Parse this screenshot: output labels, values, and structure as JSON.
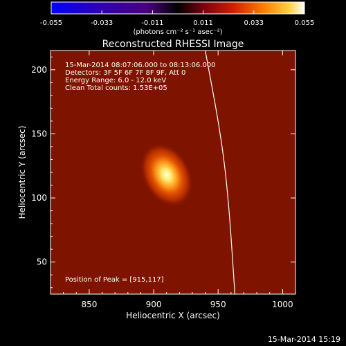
{
  "chart_data": {
    "type": "heatmap",
    "title": "Reconstructed RHESSI Image",
    "xlabel": "Heliocentric X (arcsec)",
    "ylabel": "Heliocentric Y (arcsec)",
    "xlim": [
      820,
      1010
    ],
    "ylim": [
      25,
      215
    ],
    "xticks": [
      850,
      900,
      950,
      1000
    ],
    "yticks": [
      50,
      100,
      150,
      200
    ],
    "colorbar": {
      "min": -0.055,
      "max": 0.055,
      "ticks": [
        "-0.055",
        "-0.033",
        "-0.011",
        "0.011",
        "0.033",
        "0.055"
      ],
      "units_line": "(photons cm⁻² s⁻¹ asec⁻²)"
    },
    "annotations": [
      "15-Mar-2014 08:07:06.000 to 08:13:06.000",
      "Detectors: 3F 5F 6F 7F 8F 9F, Att 0",
      "Energy Range: 6.0 - 12.0 keV",
      "Clean    Total counts: 1.53E+05"
    ],
    "peak_label": "Position of Peak = [915,117]",
    "source": {
      "x": 910,
      "y": 118,
      "peak_value": 0.055,
      "background_value": 0.012
    },
    "limb": [
      {
        "x": 940,
        "y": 215
      },
      {
        "x": 952,
        "y": 150
      },
      {
        "x": 958,
        "y": 100
      },
      {
        "x": 963,
        "y": 25
      }
    ]
  },
  "footer": {
    "timestamp": "15-Mar-2014 15:19"
  }
}
